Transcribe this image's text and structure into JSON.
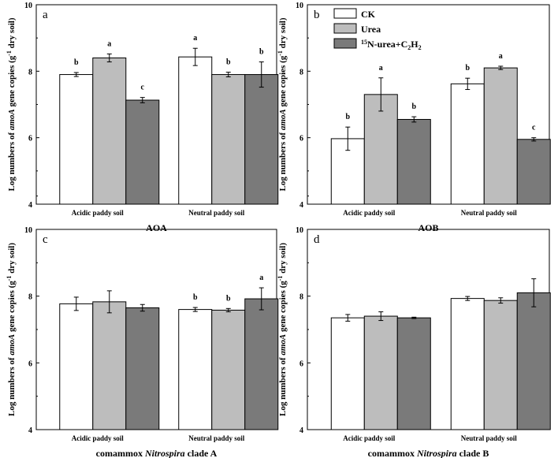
{
  "colors": {
    "CK": "#ffffff",
    "Urea": "#bdbdbd",
    "Labeled": "#7a7a7a",
    "axis": "#000000"
  },
  "legend": {
    "items": [
      {
        "key": "CK",
        "label": "CK"
      },
      {
        "key": "Urea",
        "label": "Urea"
      },
      {
        "key": "Labeled",
        "sup": "15",
        "label": "N-urea+C",
        "sub1": "2",
        "mid": "H",
        "sub2": "2"
      }
    ]
  },
  "ylabel": {
    "pre": "Log numbers of ",
    "gene": "amoA",
    "post": " gene copies (g",
    "sup": "-1",
    "tail": " dry soil)"
  },
  "chart_data": [
    {
      "type": "bar",
      "panel": "a",
      "title": "AOA",
      "categories": [
        "Acidic paddy soil",
        "Neutral paddy soil"
      ],
      "ylim": [
        4,
        10
      ],
      "yticks": [
        "4",
        "6",
        "8",
        "10"
      ],
      "series": [
        {
          "name": "CK",
          "values": [
            7.9,
            8.43
          ],
          "errors": [
            0.06,
            0.26
          ],
          "letters": [
            "b",
            "a"
          ]
        },
        {
          "name": "Urea",
          "values": [
            8.4,
            7.9
          ],
          "errors": [
            0.12,
            0.07
          ],
          "letters": [
            "a",
            "b"
          ]
        },
        {
          "name": "15N-urea+C2H2",
          "values": [
            7.13,
            7.9
          ],
          "errors": [
            0.08,
            0.38
          ],
          "letters": [
            "c",
            "b"
          ]
        }
      ]
    },
    {
      "type": "bar",
      "panel": "b",
      "title": "AOB",
      "categories": [
        "Acidic paddy soil",
        "Neutral paddy soil"
      ],
      "ylim": [
        4,
        10
      ],
      "yticks": [
        "4",
        "6",
        "8",
        "10"
      ],
      "series": [
        {
          "name": "CK",
          "values": [
            5.97,
            7.62
          ],
          "errors": [
            0.35,
            0.17
          ],
          "letters": [
            "b",
            "b"
          ]
        },
        {
          "name": "Urea",
          "values": [
            7.3,
            8.1
          ],
          "errors": [
            0.5,
            0.05
          ],
          "letters": [
            "a",
            "a"
          ]
        },
        {
          "name": "15N-urea+C2H2",
          "values": [
            6.55,
            5.95
          ],
          "errors": [
            0.08,
            0.05
          ],
          "letters": [
            "b",
            "c"
          ]
        }
      ]
    },
    {
      "type": "bar",
      "panel": "c",
      "title_pre": "comammox ",
      "title_italic": "Nitrospira",
      "title_post": " clade A",
      "categories": [
        "Acidic paddy soil",
        "Neutral paddy soil"
      ],
      "ylim": [
        4,
        10
      ],
      "yticks": [
        "4",
        "6",
        "8",
        "10"
      ],
      "series": [
        {
          "name": "CK",
          "values": [
            7.77,
            7.6
          ],
          "errors": [
            0.2,
            0.06
          ],
          "letters": [
            "",
            "b"
          ]
        },
        {
          "name": "Urea",
          "values": [
            7.83,
            7.58
          ],
          "errors": [
            0.33,
            0.05
          ],
          "letters": [
            "",
            "b"
          ]
        },
        {
          "name": "15N-urea+C2H2",
          "values": [
            7.65,
            7.92
          ],
          "errors": [
            0.1,
            0.33
          ],
          "letters": [
            "",
            "a"
          ]
        }
      ]
    },
    {
      "type": "bar",
      "panel": "d",
      "title_pre": "comammox ",
      "title_italic": "Nitrospira",
      "title_post": " clade B",
      "categories": [
        "Acidic paddy soil",
        "Neutral paddy soil"
      ],
      "ylim": [
        4,
        10
      ],
      "yticks": [
        "4",
        "6",
        "8",
        "10"
      ],
      "series": [
        {
          "name": "CK",
          "values": [
            7.35,
            7.93
          ],
          "errors": [
            0.1,
            0.06
          ],
          "letters": [
            "",
            ""
          ]
        },
        {
          "name": "Urea",
          "values": [
            7.4,
            7.87
          ],
          "errors": [
            0.13,
            0.08
          ],
          "letters": [
            "",
            ""
          ]
        },
        {
          "name": "15N-urea+C2H2",
          "values": [
            7.35,
            8.1
          ],
          "errors": [
            0.02,
            0.42
          ],
          "letters": [
            "",
            ""
          ]
        }
      ]
    }
  ]
}
